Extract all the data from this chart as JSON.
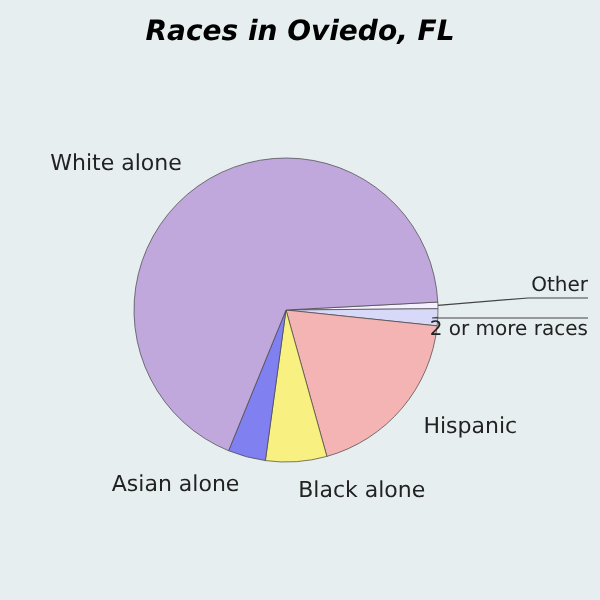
{
  "chart_data": {
    "type": "pie",
    "title": "Races in Oviedo, FL",
    "categories": [
      "Other",
      "2 or more races",
      "Hispanic",
      "Black alone",
      "Asian alone",
      "White alone"
    ],
    "values": [
      0.7,
      1.8,
      19,
      6.5,
      4,
      68
    ],
    "colors": [
      "#f4f0ff",
      "#d8d8f8",
      "#f4b4b4",
      "#f8f080",
      "#8080f0",
      "#c0a8dc"
    ],
    "legend": false
  }
}
